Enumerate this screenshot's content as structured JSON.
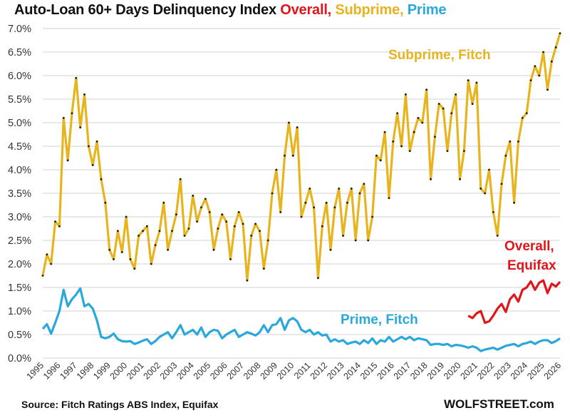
{
  "title": {
    "main": "Auto-Loan 60+ Days Delinquency Index ",
    "overall": "Overall,",
    "subprime": " Subprime,",
    "prime": " Prime"
  },
  "source": "Source: Fitch Ratings ABS Index, Equifax",
  "brand": "WOLFSTREET.com",
  "colors": {
    "overall": "#e0161b",
    "subprime": "#e8b41e",
    "prime": "#29a8dc",
    "grid": "#d9d9d9",
    "markers": "#1a1a1a"
  },
  "chart_data": {
    "type": "line",
    "title": "Auto-Loan 60+ Days Delinquency Index Overall, Subprime, Prime",
    "xlim": [
      1995,
      2026
    ],
    "ylim": [
      0,
      7
    ],
    "grid": "horizontal",
    "yticks": [
      "0.0%",
      "0.5%",
      "1.0%",
      "1.5%",
      "2.0%",
      "2.5%",
      "3.0%",
      "3.5%",
      "4.0%",
      "4.5%",
      "5.0%",
      "5.5%",
      "6.0%",
      "6.5%",
      "7.0%"
    ],
    "xticks": [
      "1995",
      "1996",
      "1997",
      "1998",
      "1999",
      "2000",
      "2001",
      "2002",
      "2003",
      "2004",
      "2005",
      "2006",
      "2007",
      "2008",
      "2009",
      "2010",
      "2011",
      "2012",
      "2013",
      "2014",
      "2015",
      "2016",
      "2017",
      "2018",
      "2019",
      "2020",
      "2021",
      "2022",
      "2023",
      "2024",
      "2025",
      "2026"
    ],
    "series": [
      {
        "name": "Subprime, Fitch",
        "color": "#e8b41e",
        "markers": true,
        "frequency": "quarterly",
        "start": 1995,
        "values": [
          1.75,
          2.2,
          2.0,
          2.9,
          2.8,
          5.1,
          4.2,
          5.2,
          5.95,
          4.9,
          5.6,
          4.5,
          4.1,
          4.6,
          3.8,
          3.3,
          2.3,
          2.1,
          2.7,
          2.25,
          3.0,
          2.1,
          1.9,
          2.6,
          2.7,
          2.8,
          2.0,
          2.4,
          2.7,
          3.3,
          2.3,
          2.7,
          3.05,
          3.8,
          2.6,
          2.75,
          3.45,
          2.9,
          3.2,
          3.38,
          3.1,
          2.3,
          2.75,
          3.05,
          2.9,
          2.1,
          2.8,
          3.1,
          2.85,
          1.65,
          2.6,
          2.85,
          2.7,
          1.9,
          2.5,
          3.5,
          4.0,
          3.1,
          4.3,
          5.0,
          4.3,
          4.9,
          3.0,
          3.3,
          3.6,
          3.2,
          1.7,
          2.8,
          3.3,
          2.3,
          3.2,
          3.6,
          2.6,
          3.3,
          3.6,
          2.5,
          3.5,
          3.7,
          2.5,
          3.0,
          4.3,
          4.2,
          4.8,
          3.4,
          4.6,
          5.2,
          4.5,
          5.6,
          4.4,
          4.8,
          5.1,
          5.0,
          5.7,
          3.8,
          4.7,
          5.4,
          5.3,
          4.4,
          5.2,
          5.6,
          3.8,
          4.4,
          5.9,
          5.4,
          5.85,
          3.6,
          3.5,
          4.0,
          3.1,
          2.6,
          3.7,
          4.3,
          4.6,
          3.3,
          4.6,
          5.1,
          5.2,
          5.9,
          6.2,
          6.0,
          6.5,
          5.7,
          6.3,
          6.6,
          6.9
        ]
      },
      {
        "name": "Prime, Fitch",
        "color": "#29a8dc",
        "markers": false,
        "frequency": "quarterly",
        "start": 1995,
        "values": [
          0.62,
          0.72,
          0.52,
          0.75,
          1.0,
          1.45,
          1.1,
          1.25,
          1.35,
          1.48,
          1.1,
          1.15,
          1.05,
          0.8,
          0.45,
          0.42,
          0.45,
          0.52,
          0.4,
          0.36,
          0.35,
          0.36,
          0.3,
          0.33,
          0.37,
          0.4,
          0.3,
          0.36,
          0.45,
          0.5,
          0.55,
          0.42,
          0.55,
          0.7,
          0.5,
          0.55,
          0.6,
          0.5,
          0.65,
          0.45,
          0.55,
          0.6,
          0.58,
          0.42,
          0.5,
          0.55,
          0.6,
          0.45,
          0.5,
          0.55,
          0.52,
          0.48,
          0.55,
          0.7,
          0.55,
          0.7,
          0.72,
          0.85,
          0.6,
          0.8,
          0.85,
          0.78,
          0.6,
          0.55,
          0.6,
          0.5,
          0.55,
          0.48,
          0.5,
          0.35,
          0.4,
          0.35,
          0.38,
          0.3,
          0.33,
          0.35,
          0.3,
          0.38,
          0.32,
          0.42,
          0.3,
          0.38,
          0.35,
          0.45,
          0.35,
          0.4,
          0.45,
          0.4,
          0.45,
          0.38,
          0.42,
          0.4,
          0.38,
          0.28,
          0.3,
          0.3,
          0.28,
          0.3,
          0.25,
          0.28,
          0.27,
          0.25,
          0.22,
          0.25,
          0.22,
          0.15,
          0.18,
          0.2,
          0.22,
          0.18,
          0.22,
          0.26,
          0.28,
          0.3,
          0.25,
          0.3,
          0.32,
          0.35,
          0.3,
          0.35,
          0.38,
          0.38,
          0.32,
          0.36,
          0.42
        ]
      },
      {
        "name": "Overall, Equifax",
        "color": "#e0161b",
        "markers": false,
        "frequency": "quarterly",
        "start": 2020.5,
        "values": [
          0.9,
          0.85,
          0.95,
          1.0,
          0.75,
          0.78,
          0.9,
          1.05,
          1.15,
          0.98,
          1.25,
          1.35,
          1.2,
          1.45,
          1.5,
          1.63,
          1.45,
          1.6,
          1.65,
          1.38,
          1.58,
          1.52,
          1.62
        ]
      }
    ],
    "annotations": {
      "subprime": "Subprime, Fitch",
      "prime": "Prime, Fitch",
      "overall_1": "Overall,",
      "overall_2": "Equifax"
    }
  }
}
